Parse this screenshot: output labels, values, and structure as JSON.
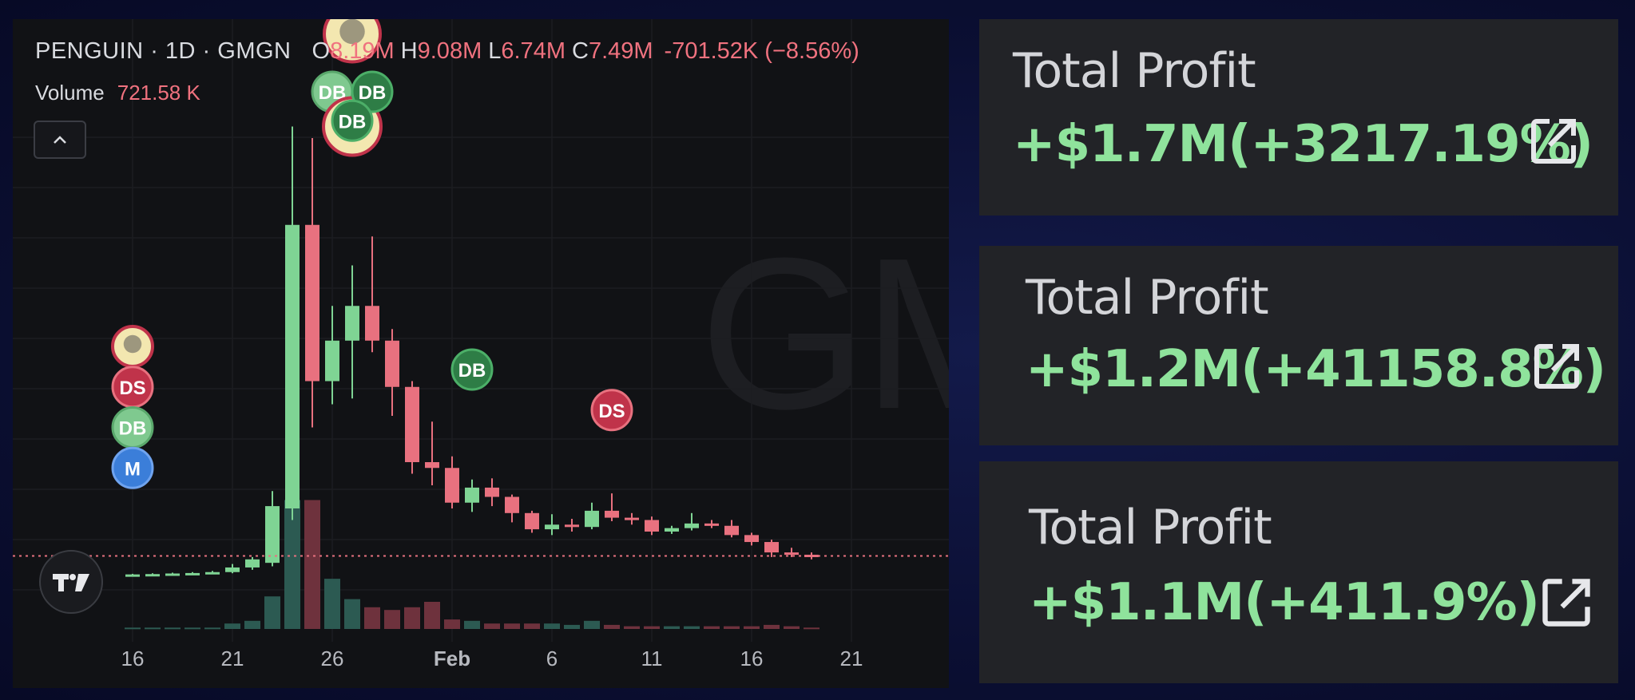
{
  "chart_data": {
    "type": "candlestick",
    "symbol": "PENGUIN",
    "interval": "1D",
    "source": "GMGN",
    "watermark": "GMGN",
    "legend": {
      "open_key": "O",
      "open": "8.19M",
      "high_key": "H",
      "high": "9.08M",
      "low_key": "L",
      "low": "6.74M",
      "close_key": "C",
      "close": "7.49M",
      "change": "-701.52K (−8.56%)"
    },
    "volume_label": "Volume",
    "volume_value": "721.58 K",
    "x_ticks": [
      {
        "label": "16",
        "day": 16,
        "bold": false
      },
      {
        "label": "21",
        "day": 21,
        "bold": false
      },
      {
        "label": "26",
        "day": 26,
        "bold": false
      },
      {
        "label": "Feb",
        "day": 32,
        "bold": true
      },
      {
        "label": "6",
        "day": 37,
        "bold": false
      },
      {
        "label": "11",
        "day": 42,
        "bold": false
      },
      {
        "label": "16",
        "day": 47,
        "bold": false
      },
      {
        "label": "21",
        "day": 52,
        "bold": false
      }
    ],
    "y_range": [
      0,
      40
    ],
    "candles": [
      {
        "day": 16,
        "o": 0.25,
        "h": 0.35,
        "l": 0.2,
        "c": 0.3
      },
      {
        "day": 17,
        "o": 0.3,
        "h": 0.4,
        "l": 0.25,
        "c": 0.33
      },
      {
        "day": 18,
        "o": 0.33,
        "h": 0.45,
        "l": 0.3,
        "c": 0.38
      },
      {
        "day": 19,
        "o": 0.38,
        "h": 0.5,
        "l": 0.33,
        "c": 0.42
      },
      {
        "day": 20,
        "o": 0.42,
        "h": 0.6,
        "l": 0.38,
        "c": 0.5
      },
      {
        "day": 21,
        "o": 0.5,
        "h": 1.2,
        "l": 0.4,
        "c": 0.9
      },
      {
        "day": 22,
        "o": 0.9,
        "h": 1.8,
        "l": 0.7,
        "c": 1.6
      },
      {
        "day": 23,
        "o": 1.3,
        "h": 7.5,
        "l": 1.0,
        "c": 6.2
      },
      {
        "day": 24,
        "o": 6.0,
        "h": 39.0,
        "l": 5.0,
        "c": 30.5
      },
      {
        "day": 25,
        "o": 30.5,
        "h": 38.0,
        "l": 13.0,
        "c": 17.0
      },
      {
        "day": 26,
        "o": 17.0,
        "h": 23.5,
        "l": 15.0,
        "c": 20.5
      },
      {
        "day": 27,
        "o": 20.5,
        "h": 27.0,
        "l": 15.5,
        "c": 23.5
      },
      {
        "day": 28,
        "o": 23.5,
        "h": 29.5,
        "l": 19.5,
        "c": 20.5
      },
      {
        "day": 29,
        "o": 20.5,
        "h": 21.5,
        "l": 14.0,
        "c": 16.5
      },
      {
        "day": 30,
        "o": 16.5,
        "h": 17.0,
        "l": 9.0,
        "c": 10.0
      },
      {
        "day": 31,
        "o": 10.0,
        "h": 13.5,
        "l": 8.0,
        "c": 9.5
      },
      {
        "day": 32,
        "o": 9.5,
        "h": 10.5,
        "l": 6.0,
        "c": 6.5
      },
      {
        "day": 33,
        "o": 6.5,
        "h": 8.5,
        "l": 5.7,
        "c": 7.8
      },
      {
        "day": 34,
        "o": 7.8,
        "h": 8.6,
        "l": 6.2,
        "c": 7.0
      },
      {
        "day": 35,
        "o": 7.0,
        "h": 7.2,
        "l": 4.8,
        "c": 5.6
      },
      {
        "day": 36,
        "o": 5.6,
        "h": 5.8,
        "l": 3.9,
        "c": 4.2
      },
      {
        "day": 37,
        "o": 4.2,
        "h": 5.5,
        "l": 3.7,
        "c": 4.6
      },
      {
        "day": 38,
        "o": 4.6,
        "h": 5.1,
        "l": 4.0,
        "c": 4.4
      },
      {
        "day": 39,
        "o": 4.4,
        "h": 6.5,
        "l": 4.2,
        "c": 5.8
      },
      {
        "day": 40,
        "o": 5.8,
        "h": 7.3,
        "l": 4.9,
        "c": 5.2
      },
      {
        "day": 41,
        "o": 5.2,
        "h": 5.6,
        "l": 4.6,
        "c": 5.0
      },
      {
        "day": 42,
        "o": 5.0,
        "h": 5.3,
        "l": 3.7,
        "c": 4.0
      },
      {
        "day": 43,
        "o": 4.0,
        "h": 4.5,
        "l": 3.8,
        "c": 4.3
      },
      {
        "day": 44,
        "o": 4.3,
        "h": 5.6,
        "l": 4.1,
        "c": 4.7
      },
      {
        "day": 45,
        "o": 4.7,
        "h": 5.0,
        "l": 4.3,
        "c": 4.5
      },
      {
        "day": 46,
        "o": 4.5,
        "h": 5.0,
        "l": 3.5,
        "c": 3.7
      },
      {
        "day": 47,
        "o": 3.7,
        "h": 3.9,
        "l": 2.8,
        "c": 3.1
      },
      {
        "day": 48,
        "o": 3.1,
        "h": 3.3,
        "l": 1.8,
        "c": 2.2
      },
      {
        "day": 49,
        "o": 2.2,
        "h": 2.6,
        "l": 1.8,
        "c": 2.0
      },
      {
        "day": 50,
        "o": 2.0,
        "h": 2.2,
        "l": 1.6,
        "c": 1.9
      }
    ],
    "volume_range": [
      0,
      100
    ],
    "volumes": [
      {
        "day": 16,
        "v": 1,
        "up": true
      },
      {
        "day": 17,
        "v": 1,
        "up": true
      },
      {
        "day": 18,
        "v": 1,
        "up": true
      },
      {
        "day": 19,
        "v": 1,
        "up": true
      },
      {
        "day": 20,
        "v": 1,
        "up": true
      },
      {
        "day": 21,
        "v": 4,
        "up": true
      },
      {
        "day": 22,
        "v": 6,
        "up": true
      },
      {
        "day": 23,
        "v": 24,
        "up": true
      },
      {
        "day": 24,
        "v": 95,
        "up": true
      },
      {
        "day": 25,
        "v": 95,
        "up": false
      },
      {
        "day": 26,
        "v": 37,
        "up": true
      },
      {
        "day": 27,
        "v": 22,
        "up": true
      },
      {
        "day": 28,
        "v": 16,
        "up": false
      },
      {
        "day": 29,
        "v": 14,
        "up": false
      },
      {
        "day": 30,
        "v": 16,
        "up": false
      },
      {
        "day": 31,
        "v": 20,
        "up": false
      },
      {
        "day": 32,
        "v": 7,
        "up": false
      },
      {
        "day": 33,
        "v": 6,
        "up": true
      },
      {
        "day": 34,
        "v": 4,
        "up": false
      },
      {
        "day": 35,
        "v": 4,
        "up": false
      },
      {
        "day": 36,
        "v": 4,
        "up": false
      },
      {
        "day": 37,
        "v": 4,
        "up": true
      },
      {
        "day": 38,
        "v": 3,
        "up": true
      },
      {
        "day": 39,
        "v": 6,
        "up": true
      },
      {
        "day": 40,
        "v": 3,
        "up": false
      },
      {
        "day": 41,
        "v": 2,
        "up": false
      },
      {
        "day": 42,
        "v": 2,
        "up": false
      },
      {
        "day": 43,
        "v": 2,
        "up": true
      },
      {
        "day": 44,
        "v": 2,
        "up": true
      },
      {
        "day": 45,
        "v": 2,
        "up": false
      },
      {
        "day": 46,
        "v": 2,
        "up": false
      },
      {
        "day": 47,
        "v": 2,
        "up": false
      },
      {
        "day": 48,
        "v": 3,
        "up": false
      },
      {
        "day": 49,
        "v": 2,
        "up": false
      },
      {
        "day": 50,
        "v": 1,
        "up": false
      }
    ],
    "current_price": 1.9,
    "markers": [
      {
        "day": 16,
        "price": 20,
        "label": "",
        "kind": "avatar"
      },
      {
        "day": 16,
        "price": 16.5,
        "label": "DS",
        "kind": "DS"
      },
      {
        "day": 16,
        "price": 13,
        "label": "DB",
        "kind": "DB-light"
      },
      {
        "day": 16,
        "price": 9.5,
        "label": "M",
        "kind": "M"
      },
      {
        "day": 26,
        "price": 42,
        "label": "DB",
        "kind": "DB-light"
      },
      {
        "day": 27,
        "price": 39,
        "label": "",
        "kind": "avatar-gold"
      },
      {
        "day": 28,
        "price": 42,
        "label": "DB",
        "kind": "DB"
      },
      {
        "day": 27,
        "price": 39.5,
        "label": "DB",
        "kind": "DB"
      },
      {
        "day": 27,
        "price": 47,
        "label": "",
        "kind": "avatar-large"
      },
      {
        "day": 33,
        "price": 18,
        "label": "DB",
        "kind": "DB"
      },
      {
        "day": 40,
        "price": 14.5,
        "label": "DS",
        "kind": "DS"
      }
    ],
    "colors": {
      "up": "#7fd494",
      "down": "#e8717f",
      "up_volume": "#2c5a52",
      "down_volume": "#6e323d",
      "grid": "#1c1d21",
      "price_line": "#e8717f"
    }
  },
  "profit_cards": [
    {
      "label": "Total Profit",
      "value": "+$1.7M(+3217.19%)"
    },
    {
      "label": "Total Profit",
      "value": "+$1.2M(+41158.8%)"
    },
    {
      "label": "Total Profit",
      "value": "+$1.1M(+411.9%)"
    }
  ],
  "icons": {
    "collapse": "chevron-up-icon",
    "tradingview": "tradingview-logo-icon",
    "share": "external-link-icon"
  }
}
